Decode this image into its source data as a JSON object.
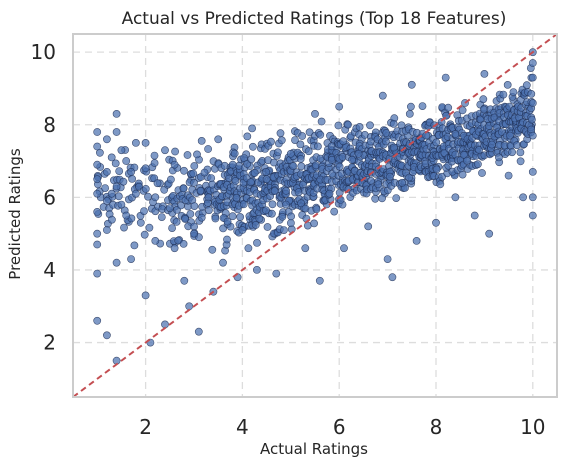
{
  "chart_data": {
    "type": "scatter",
    "title": "Actual vs Predicted Ratings (Top 18 Features)",
    "xlabel": "Actual Ratings",
    "ylabel": "Predicted Ratings",
    "xlim": [
      0.5,
      10.5
    ],
    "ylim": [
      0.5,
      10.5
    ],
    "xticks": [
      "2",
      "4",
      "6",
      "8",
      "10"
    ],
    "yticks": [
      "2",
      "4",
      "6",
      "8",
      "10"
    ],
    "grid": true,
    "legend": "none",
    "colors": {
      "point": "#4c72b0",
      "point_edge": "#1f2f55",
      "reference_line": "#c44e52",
      "grid": "#dddddd",
      "spine": "#cccccc"
    },
    "reference_line": {
      "style": "dashed",
      "x": [
        0.5,
        10.5
      ],
      "y": [
        0.5,
        10.5
      ]
    },
    "points": [
      [
        1.0,
        7.8
      ],
      [
        1.0,
        7.4
      ],
      [
        1.0,
        6.9
      ],
      [
        1.0,
        6.5
      ],
      [
        1.0,
        6.1
      ],
      [
        1.0,
        5.6
      ],
      [
        1.0,
        5.0
      ],
      [
        1.0,
        4.7
      ],
      [
        1.0,
        3.9
      ],
      [
        1.0,
        2.6
      ],
      [
        1.2,
        7.6
      ],
      [
        1.2,
        6.7
      ],
      [
        1.2,
        5.9
      ],
      [
        1.2,
        5.1
      ],
      [
        1.2,
        2.2
      ],
      [
        1.3,
        7.1
      ],
      [
        1.3,
        6.1
      ],
      [
        1.4,
        8.3
      ],
      [
        1.4,
        7.8
      ],
      [
        1.4,
        6.3
      ],
      [
        1.4,
        4.2
      ],
      [
        1.4,
        1.5
      ],
      [
        1.5,
        7.3
      ],
      [
        1.5,
        5.8
      ],
      [
        1.6,
        7.0
      ],
      [
        1.6,
        5.5
      ],
      [
        1.7,
        6.7
      ],
      [
        1.7,
        4.3
      ],
      [
        1.8,
        7.5
      ],
      [
        1.8,
        6.1
      ],
      [
        1.9,
        5.3
      ],
      [
        2.0,
        7.5
      ],
      [
        2.0,
        6.8
      ],
      [
        2.0,
        3.3
      ],
      [
        2.1,
        2.0
      ],
      [
        2.2,
        6.0
      ],
      [
        2.2,
        4.8
      ],
      [
        2.4,
        7.3
      ],
      [
        2.4,
        2.5
      ],
      [
        2.5,
        5.7
      ],
      [
        2.6,
        6.9
      ],
      [
        2.6,
        4.6
      ],
      [
        2.8,
        3.7
      ],
      [
        2.9,
        3.0
      ],
      [
        3.0,
        6.4
      ],
      [
        3.0,
        5.0
      ],
      [
        3.1,
        2.3
      ],
      [
        3.3,
        6.0
      ],
      [
        3.4,
        3.4
      ],
      [
        3.5,
        7.6
      ],
      [
        3.6,
        4.2
      ],
      [
        3.8,
        6.9
      ],
      [
        3.9,
        3.8
      ],
      [
        4.0,
        5.1
      ],
      [
        4.2,
        7.9
      ],
      [
        4.3,
        4.0
      ],
      [
        4.5,
        6.5
      ],
      [
        4.7,
        3.9
      ],
      [
        4.9,
        5.8
      ],
      [
        5.0,
        7.2
      ],
      [
        5.3,
        4.6
      ],
      [
        5.5,
        8.3
      ],
      [
        5.6,
        3.7
      ],
      [
        5.8,
        6.1
      ],
      [
        6.0,
        8.5
      ],
      [
        6.1,
        4.6
      ],
      [
        6.4,
        7.2
      ],
      [
        6.6,
        5.2
      ],
      [
        6.9,
        8.8
      ],
      [
        7.0,
        4.3
      ],
      [
        7.1,
        3.8
      ],
      [
        7.3,
        6.4
      ],
      [
        7.5,
        9.1
      ],
      [
        7.6,
        4.8
      ],
      [
        7.8,
        7.7
      ],
      [
        8.0,
        5.3
      ],
      [
        8.2,
        9.3
      ],
      [
        8.4,
        6.0
      ],
      [
        8.6,
        8.6
      ],
      [
        8.8,
        5.5
      ],
      [
        9.0,
        9.4
      ],
      [
        9.1,
        5.0
      ],
      [
        9.3,
        7.1
      ],
      [
        9.5,
        6.6
      ],
      [
        9.6,
        8.9
      ],
      [
        9.8,
        6.0
      ],
      [
        10.0,
        10.0
      ],
      [
        10.0,
        9.7
      ],
      [
        10.0,
        9.3
      ],
      [
        10.0,
        8.6
      ],
      [
        10.0,
        7.7
      ],
      [
        10.0,
        6.7
      ],
      [
        10.0,
        6.0
      ],
      [
        10.0,
        5.5
      ]
    ],
    "cloud": {
      "x_range": [
        1.0,
        10.0
      ],
      "x_step": 0.08,
      "bands": [
        {
          "x": 1.0,
          "y_min": 4.4,
          "y_max": 7.8
        },
        {
          "x": 2.0,
          "y_min": 4.2,
          "y_max": 7.7
        },
        {
          "x": 3.0,
          "y_min": 4.1,
          "y_max": 7.9
        },
        {
          "x": 4.0,
          "y_min": 4.3,
          "y_max": 8.1
        },
        {
          "x": 5.0,
          "y_min": 4.6,
          "y_max": 8.2
        },
        {
          "x": 6.0,
          "y_min": 5.0,
          "y_max": 8.4
        },
        {
          "x": 7.0,
          "y_min": 5.4,
          "y_max": 8.6
        },
        {
          "x": 8.0,
          "y_min": 5.9,
          "y_max": 8.8
        },
        {
          "x": 9.0,
          "y_min": 6.3,
          "y_max": 9.1
        },
        {
          "x": 10.0,
          "y_min": 6.8,
          "y_max": 9.9
        }
      ]
    }
  }
}
